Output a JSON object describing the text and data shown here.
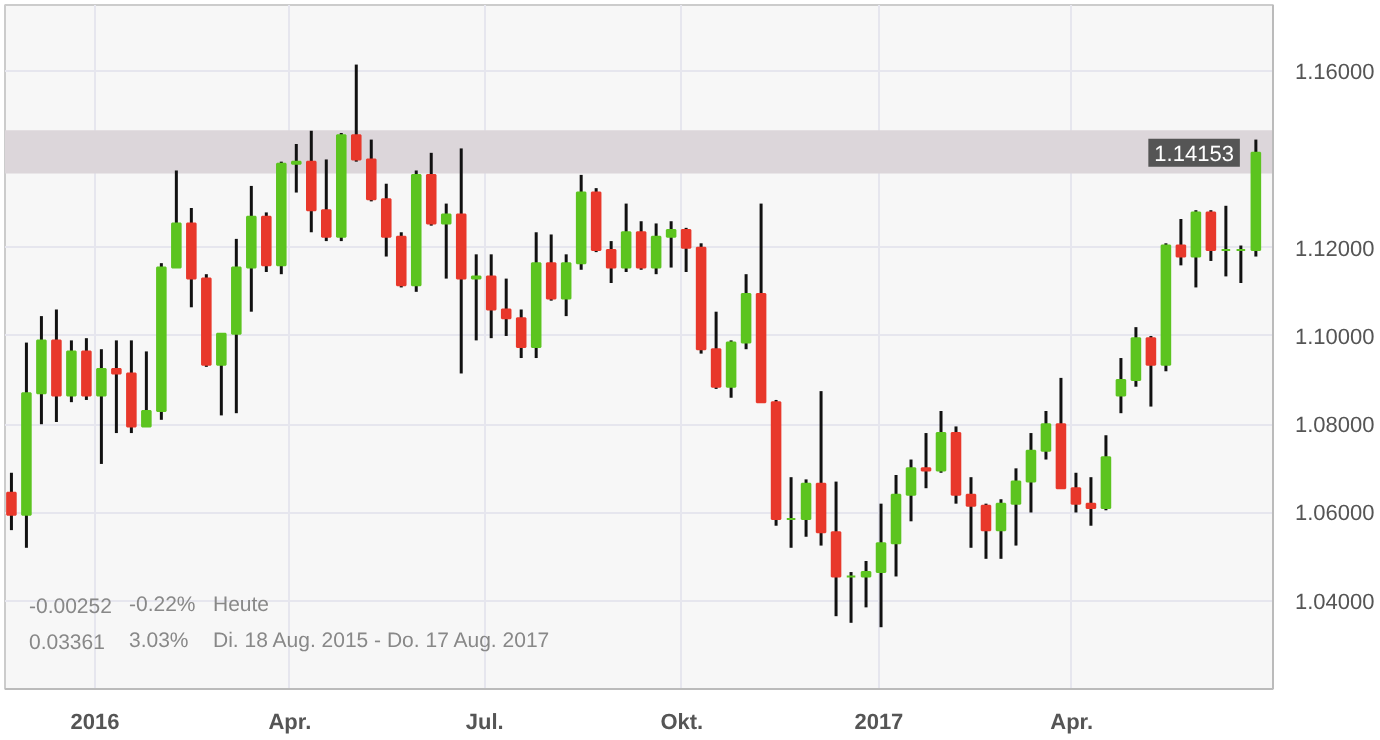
{
  "chart_data": {
    "type": "candlestick",
    "x": [
      "2015-11-23",
      "2015-11-30",
      "2015-12-07",
      "2015-12-14",
      "2015-12-21",
      "2015-12-28",
      "2016-01-04",
      "2016-01-11",
      "2016-01-18",
      "2016-01-25",
      "2016-02-01",
      "2016-02-08",
      "2016-02-15",
      "2016-02-22",
      "2016-02-29",
      "2016-03-07",
      "2016-03-14",
      "2016-03-21",
      "2016-03-28",
      "2016-04-04",
      "2016-04-11",
      "2016-04-18",
      "2016-04-25",
      "2016-05-02",
      "2016-05-09",
      "2016-05-16",
      "2016-05-23",
      "2016-05-30",
      "2016-06-06",
      "2016-06-13",
      "2016-06-20",
      "2016-06-27",
      "2016-07-04",
      "2016-07-11",
      "2016-07-18",
      "2016-07-25",
      "2016-08-01",
      "2016-08-08",
      "2016-08-15",
      "2016-08-22",
      "2016-08-29",
      "2016-09-05",
      "2016-09-12",
      "2016-09-19",
      "2016-09-26",
      "2016-10-03",
      "2016-10-10",
      "2016-10-17",
      "2016-10-24",
      "2016-10-31",
      "2016-11-07",
      "2016-11-14",
      "2016-11-21",
      "2016-11-28",
      "2016-12-05",
      "2016-12-12",
      "2016-12-19",
      "2016-12-26",
      "2017-01-02",
      "2017-01-09",
      "2017-01-16",
      "2017-01-23",
      "2017-01-30",
      "2017-02-06",
      "2017-02-13",
      "2017-02-20",
      "2017-02-27",
      "2017-03-06",
      "2017-03-13",
      "2017-03-20",
      "2017-03-27",
      "2017-04-03",
      "2017-04-10",
      "2017-04-17",
      "2017-04-24",
      "2017-05-01",
      "2017-05-08",
      "2017-05-15",
      "2017-05-22",
      "2017-05-29",
      "2017-06-05",
      "2017-06-12",
      "2017-06-19",
      "2017-06-26"
    ],
    "ohlc": [
      [
        1.0645,
        1.069,
        1.056,
        1.0595
      ],
      [
        1.0595,
        1.0985,
        1.052,
        1.087
      ],
      [
        1.087,
        1.1045,
        1.08,
        1.099
      ],
      [
        1.099,
        1.106,
        1.0805,
        1.0865
      ],
      [
        1.0865,
        1.099,
        1.085,
        1.0965
      ],
      [
        1.0965,
        1.0995,
        1.0855,
        1.0865
      ],
      [
        1.0865,
        1.097,
        1.071,
        1.0925
      ],
      [
        1.0925,
        1.099,
        1.078,
        1.0915
      ],
      [
        1.0915,
        1.099,
        1.078,
        1.0795
      ],
      [
        1.0795,
        1.0965,
        1.0795,
        1.083
      ],
      [
        1.083,
        1.1165,
        1.081,
        1.1155
      ],
      [
        1.1155,
        1.1375,
        1.1155,
        1.1255
      ],
      [
        1.1255,
        1.129,
        1.1065,
        1.113
      ],
      [
        1.113,
        1.114,
        1.093,
        1.0935
      ],
      [
        1.0935,
        1.1005,
        1.082,
        1.1005
      ],
      [
        1.1005,
        1.122,
        1.0825,
        1.1155
      ],
      [
        1.1155,
        1.134,
        1.1055,
        1.127
      ],
      [
        1.127,
        1.128,
        1.1145,
        1.116
      ],
      [
        1.116,
        1.1395,
        1.114,
        1.139
      ],
      [
        1.139,
        1.1435,
        1.1325,
        1.1395
      ],
      [
        1.1395,
        1.1465,
        1.1235,
        1.1285
      ],
      [
        1.1285,
        1.14,
        1.1215,
        1.1225
      ],
      [
        1.1225,
        1.146,
        1.1215,
        1.1455
      ],
      [
        1.1455,
        1.1615,
        1.1395,
        1.14
      ],
      [
        1.14,
        1.1445,
        1.1305,
        1.131
      ],
      [
        1.131,
        1.1345,
        1.118,
        1.1225
      ],
      [
        1.1225,
        1.1235,
        1.111,
        1.1115
      ],
      [
        1.1115,
        1.1375,
        1.11,
        1.1365
      ],
      [
        1.1365,
        1.1415,
        1.125,
        1.1255
      ],
      [
        1.1255,
        1.13,
        1.113,
        1.1275
      ],
      [
        1.1275,
        1.1425,
        1.0915,
        1.113
      ],
      [
        1.113,
        1.1185,
        1.099,
        1.1135
      ],
      [
        1.1135,
        1.1185,
        1.0995,
        1.106
      ],
      [
        1.106,
        1.113,
        1.1,
        1.104
      ],
      [
        1.104,
        1.106,
        1.095,
        1.0975
      ],
      [
        1.0975,
        1.1235,
        1.095,
        1.1165
      ],
      [
        1.1165,
        1.123,
        1.108,
        1.1085
      ],
      [
        1.1085,
        1.1185,
        1.1045,
        1.1165
      ],
      [
        1.1165,
        1.1365,
        1.115,
        1.1325
      ],
      [
        1.1325,
        1.1335,
        1.119,
        1.1195
      ],
      [
        1.1195,
        1.1215,
        1.112,
        1.1155
      ],
      [
        1.1155,
        1.13,
        1.1145,
        1.1235
      ],
      [
        1.1235,
        1.126,
        1.115,
        1.1155
      ],
      [
        1.1155,
        1.1255,
        1.114,
        1.1225
      ],
      [
        1.1225,
        1.126,
        1.1155,
        1.124
      ],
      [
        1.124,
        1.1245,
        1.1145,
        1.12
      ],
      [
        1.12,
        1.121,
        1.096,
        1.097
      ],
      [
        1.097,
        1.1055,
        1.088,
        1.0885
      ],
      [
        1.0885,
        1.099,
        1.086,
        1.0985
      ],
      [
        1.0985,
        1.114,
        1.097,
        1.1095
      ],
      [
        1.1095,
        1.13,
        1.085,
        1.085
      ],
      [
        1.085,
        1.0855,
        1.057,
        1.0585
      ],
      [
        1.0585,
        1.068,
        1.052,
        1.0585
      ],
      [
        1.0585,
        1.0675,
        1.0545,
        1.0665
      ],
      [
        1.0665,
        1.0875,
        1.0525,
        1.0555
      ],
      [
        1.0555,
        1.067,
        1.0365,
        1.0455
      ],
      [
        1.0455,
        1.0465,
        1.035,
        1.0455
      ],
      [
        1.0455,
        1.049,
        1.0385,
        1.0465
      ],
      [
        1.0465,
        1.062,
        1.034,
        1.053
      ],
      [
        1.053,
        1.0685,
        1.0455,
        1.064
      ],
      [
        1.064,
        1.072,
        1.058,
        1.07
      ],
      [
        1.07,
        1.078,
        1.0655,
        1.0695
      ],
      [
        1.0695,
        1.083,
        1.069,
        1.078
      ],
      [
        1.078,
        1.0795,
        1.062,
        1.064
      ],
      [
        1.064,
        1.068,
        1.052,
        1.0615
      ],
      [
        1.0615,
        1.062,
        1.0495,
        1.056
      ],
      [
        1.056,
        1.063,
        1.0495,
        1.062
      ],
      [
        1.062,
        1.07,
        1.0525,
        1.067
      ],
      [
        1.067,
        1.078,
        1.06,
        1.074
      ],
      [
        1.074,
        1.083,
        1.072,
        1.08
      ],
      [
        1.08,
        1.0905,
        1.0655,
        1.0655
      ],
      [
        1.0655,
        1.069,
        1.06,
        1.062
      ],
      [
        1.062,
        1.068,
        1.057,
        1.061
      ],
      [
        1.061,
        1.0775,
        1.0605,
        1.0725
      ],
      [
        1.0865,
        1.095,
        1.0825,
        1.09
      ],
      [
        1.09,
        1.102,
        1.0885,
        1.0995
      ],
      [
        1.0995,
        1.1,
        1.084,
        1.0935
      ],
      [
        1.0935,
        1.121,
        1.092,
        1.1205
      ],
      [
        1.1205,
        1.1265,
        1.116,
        1.118
      ],
      [
        1.118,
        1.1285,
        1.111,
        1.128
      ],
      [
        1.128,
        1.1285,
        1.117,
        1.1195
      ],
      [
        1.1195,
        1.1295,
        1.1135,
        1.1195
      ],
      [
        1.1195,
        1.1205,
        1.112,
        1.1195
      ],
      [
        1.1195,
        1.1445,
        1.118,
        1.1415
      ]
    ],
    "xlim": [
      "2015-11-20",
      "2017-07-04"
    ],
    "xticks": [
      {
        "value": "2016-01-01",
        "label": "2016"
      },
      {
        "value": "2016-04-01",
        "label": "Apr."
      },
      {
        "value": "2016-07-01",
        "label": "Jul."
      },
      {
        "value": "2016-10-01",
        "label": "Okt."
      },
      {
        "value": "2017-01-01",
        "label": "2017"
      },
      {
        "value": "2017-04-01",
        "label": "Apr."
      }
    ],
    "ylim": [
      1.02,
      1.175
    ],
    "yticks": [
      {
        "value": 1.04,
        "label": "1.04000"
      },
      {
        "value": 1.06,
        "label": "1.06000"
      },
      {
        "value": 1.08,
        "label": "1.08000"
      },
      {
        "value": 1.1,
        "label": "1.10000"
      },
      {
        "value": 1.12,
        "label": "1.12000"
      },
      {
        "value": 1.14,
        "label": null
      },
      {
        "value": 1.16,
        "label": "1.16000"
      }
    ],
    "grid": true,
    "bands": [
      {
        "axis": "y",
        "from": 1.1368,
        "to": 1.1466,
        "color": "#dcd6da"
      }
    ],
    "annotations": [
      {
        "text": "1.14153",
        "x": "2017-06-26",
        "y": 1.14153
      },
      "-0.00252",
      "-0.22%",
      "Heute",
      "0.03361",
      "3.03%",
      "Di. 18 Aug. 2015 - Do. 17 Aug. 2017"
    ]
  }
}
